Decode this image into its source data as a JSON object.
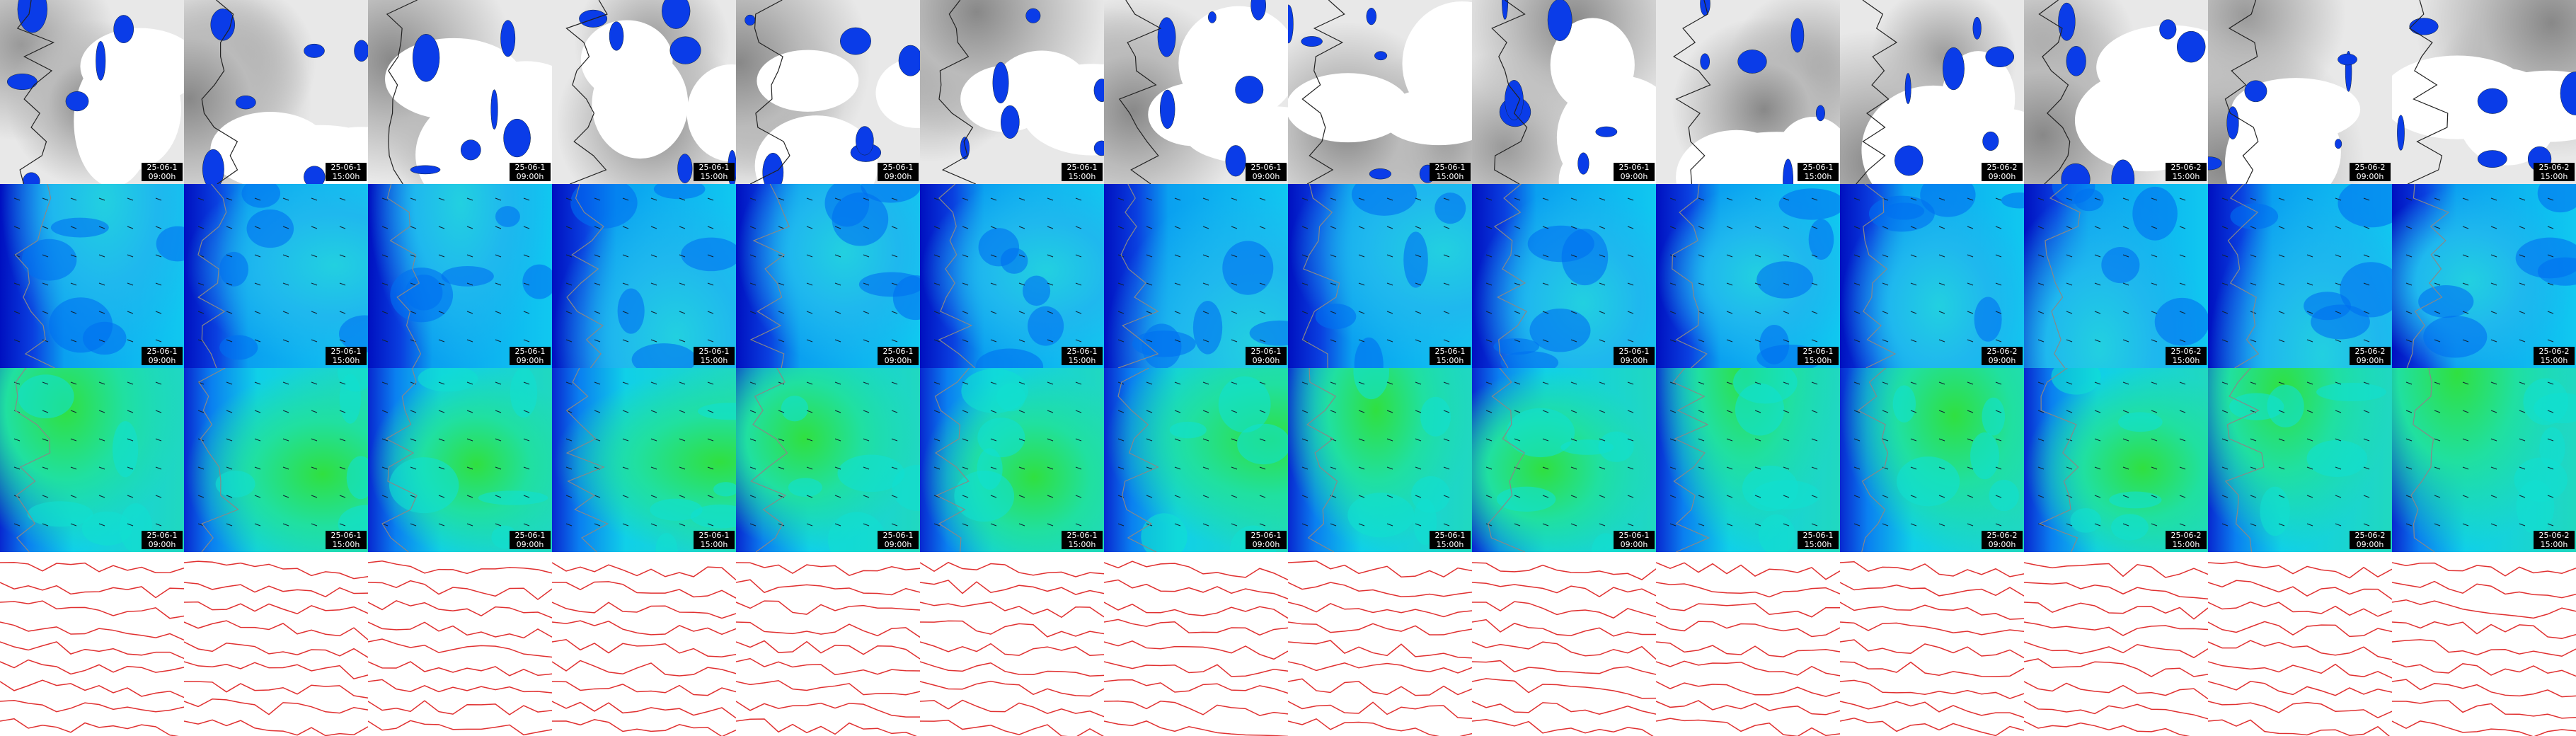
{
  "columns": [
    {
      "date": "25-06-1",
      "time": "09:00h"
    },
    {
      "date": "25-06-1",
      "time": "15:00h"
    },
    {
      "date": "25-06-1",
      "time": "09:00h"
    },
    {
      "date": "25-06-1",
      "time": "15:00h"
    },
    {
      "date": "25-06-1",
      "time": "09:00h"
    },
    {
      "date": "25-06-1",
      "time": "15:00h"
    },
    {
      "date": "25-06-1",
      "time": "09:00h"
    },
    {
      "date": "25-06-1",
      "time": "15:00h"
    },
    {
      "date": "25-06-1",
      "time": "09:00h"
    },
    {
      "date": "25-06-1",
      "time": "15:00h"
    },
    {
      "date": "25-06-2",
      "time": "09:00h"
    },
    {
      "date": "25-06-2",
      "time": "15:00h"
    },
    {
      "date": "25-06-2",
      "time": "09:00h"
    },
    {
      "date": "25-06-2",
      "time": "15:00h"
    }
  ]
}
